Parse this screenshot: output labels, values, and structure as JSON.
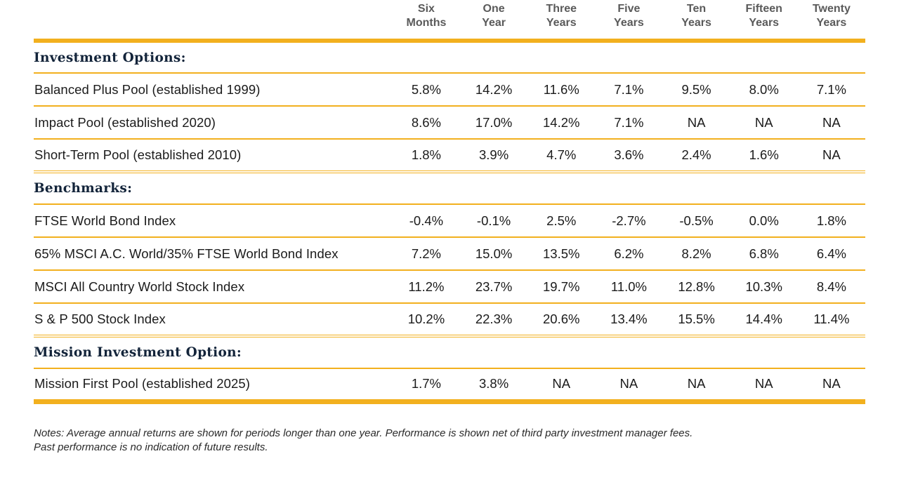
{
  "header": {
    "columns": [
      {
        "line1": "Six",
        "line2": "Months"
      },
      {
        "line1": "One",
        "line2": "Year"
      },
      {
        "line1": "Three",
        "line2": "Years"
      },
      {
        "line1": "Five",
        "line2": "Years"
      },
      {
        "line1": "Ten",
        "line2": "Years"
      },
      {
        "line1": "Fifteen",
        "line2": "Years"
      },
      {
        "line1": "Twenty",
        "line2": "Years"
      }
    ]
  },
  "sections": {
    "investment": {
      "title": "Investment Options:",
      "rows": [
        {
          "name": "Balanced Plus Pool  (established 1999)",
          "values": [
            "5.8%",
            "14.2%",
            "11.6%",
            "7.1%",
            "9.5%",
            "8.0%",
            "7.1%"
          ]
        },
        {
          "name": "Impact Pool  (established 2020)",
          "values": [
            "8.6%",
            "17.0%",
            "14.2%",
            "7.1%",
            "NA",
            "NA",
            "NA"
          ]
        },
        {
          "name": "Short-Term Pool  (established 2010)",
          "values": [
            "1.8%",
            "3.9%",
            "4.7%",
            "3.6%",
            "2.4%",
            "1.6%",
            "NA"
          ]
        }
      ]
    },
    "benchmarks": {
      "title": "Benchmarks:",
      "rows": [
        {
          "name": "FTSE World Bond Index",
          "values": [
            "-0.4%",
            "-0.1%",
            "2.5%",
            "-2.7%",
            "-0.5%",
            "0.0%",
            "1.8%"
          ]
        },
        {
          "name": "65% MSCI A.C. World/35% FTSE World Bond Index",
          "values": [
            "7.2%",
            "15.0%",
            "13.5%",
            "6.2%",
            "8.2%",
            "6.8%",
            "6.4%"
          ]
        },
        {
          "name": "MSCI All Country World Stock Index",
          "values": [
            "11.2%",
            "23.7%",
            "19.7%",
            "11.0%",
            "12.8%",
            "10.3%",
            "8.4%"
          ]
        },
        {
          "name": "S & P 500 Stock Index",
          "values": [
            "10.2%",
            "22.3%",
            "20.6%",
            "13.4%",
            "15.5%",
            "14.4%",
            "11.4%"
          ]
        }
      ]
    },
    "mission": {
      "title": "Mission Investment Option:",
      "rows": [
        {
          "name": "Mission First Pool  (established 2025)",
          "values": [
            "1.7%",
            "3.8%",
            "NA",
            "NA",
            "NA",
            "NA",
            "NA"
          ]
        }
      ]
    }
  },
  "notes": {
    "line1": "Notes: Average annual returns are shown for periods longer than one year. Performance is shown net of third party investment manager fees.",
    "line2": "Past performance is no indication of future results."
  },
  "colors": {
    "accent": "#f2b01e",
    "section_heading": "#13243a",
    "header_text": "#5a5a5a"
  }
}
